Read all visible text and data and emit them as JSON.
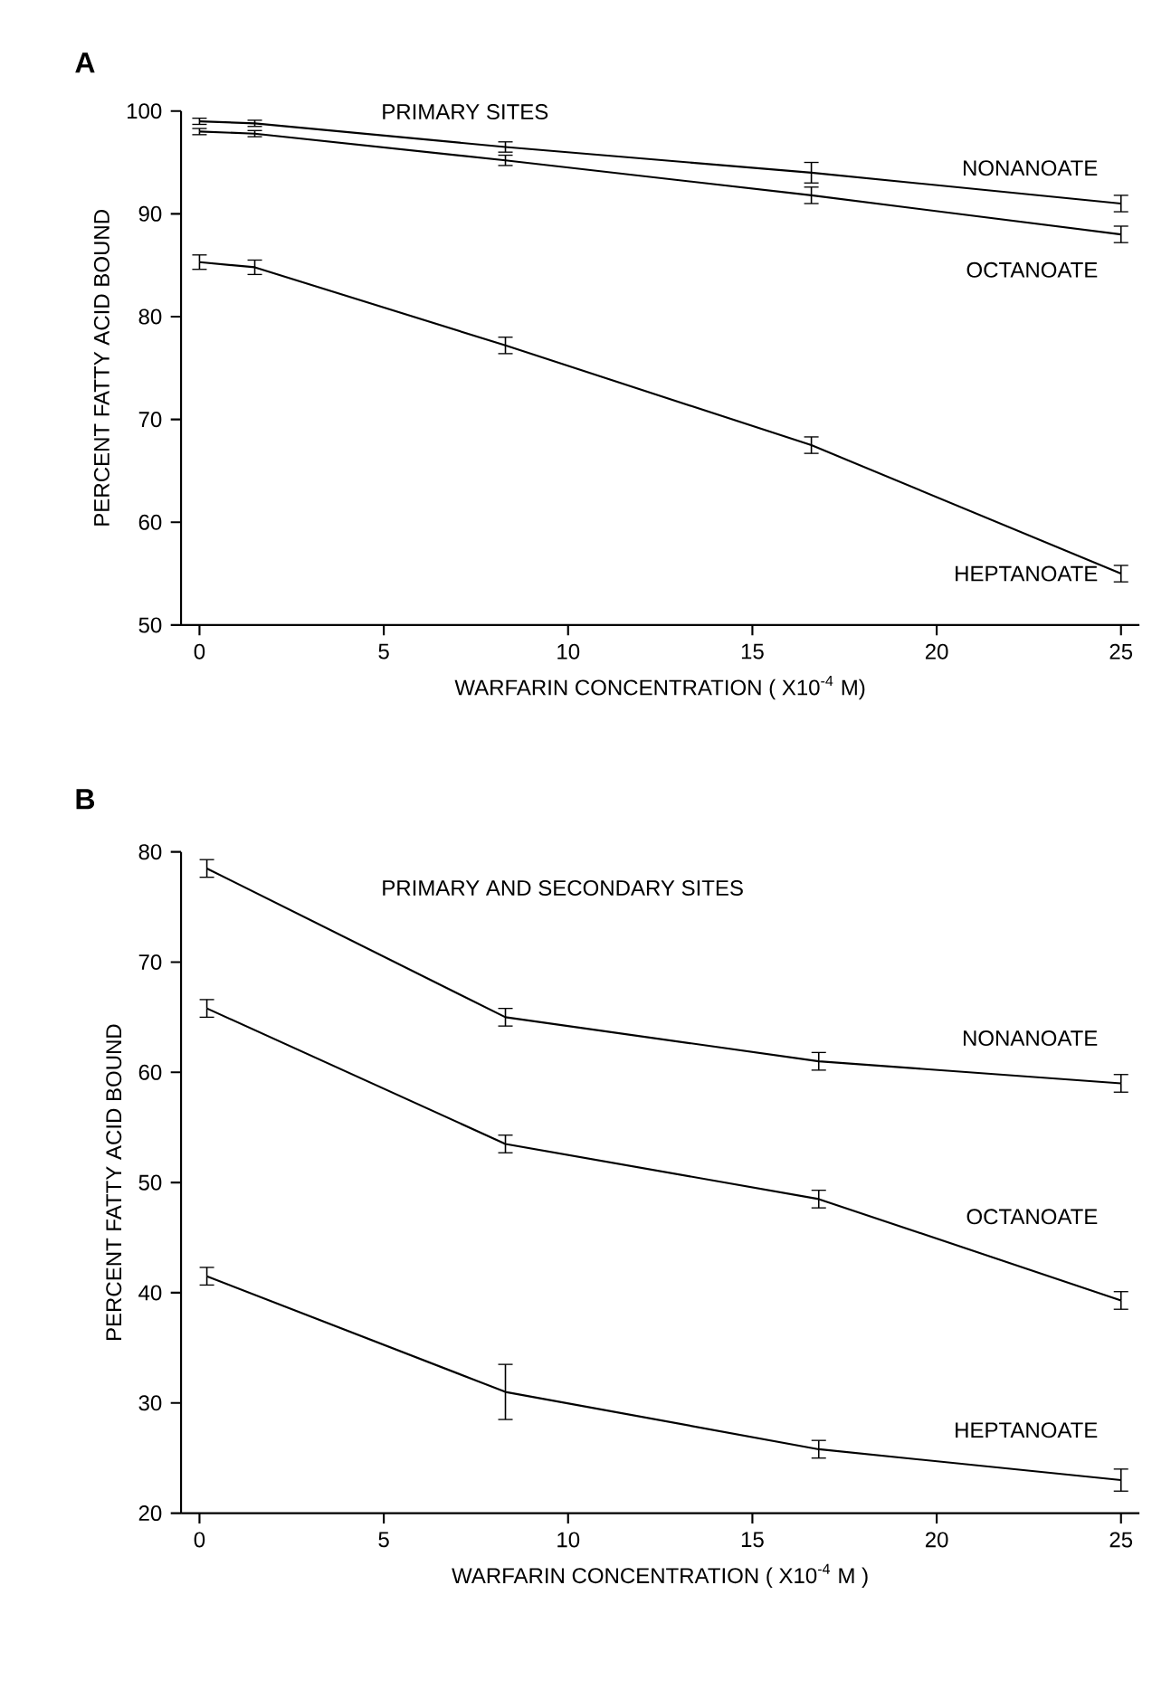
{
  "chart_data": [
    {
      "type": "line",
      "title": "A",
      "subtitle": "PRIMARY SITES",
      "xlabel": "WARFARIN CONCENTRATION ( X10$^{-4}$ M)",
      "ylabel": "PERCENT FATTY ACID BOUND",
      "x": [
        0,
        1.5,
        8.3,
        16.6,
        25
      ],
      "xlim": [
        -0.5,
        25.5
      ],
      "xticks": [
        0,
        5,
        10,
        15,
        20,
        25
      ],
      "ylim": [
        50,
        100
      ],
      "yticks": [
        50,
        60,
        70,
        80,
        90,
        100
      ],
      "series": [
        {
          "name": "NONANOATE",
          "color": "#000000",
          "values": [
            99,
            98.8,
            96.5,
            94,
            91
          ],
          "errors": [
            0.3,
            0.3,
            0.5,
            1,
            0.8
          ]
        },
        {
          "name": "OCTANOATE",
          "color": "#000000",
          "values": [
            98,
            97.8,
            95.2,
            91.8,
            88
          ],
          "errors": [
            0.3,
            0.3,
            0.5,
            0.8,
            0.8
          ]
        },
        {
          "name": "HEPTANOATE",
          "color": "#000000",
          "values": [
            85.3,
            84.8,
            77.2,
            67.5,
            55
          ],
          "errors": [
            0.7,
            0.7,
            0.8,
            0.8,
            0.8
          ]
        }
      ]
    },
    {
      "type": "line",
      "title": "B",
      "subtitle": "PRIMARY AND SECONDARY SITES",
      "xlabel": "WARFARIN CONCENTRATION ( X10$^{-4}$ M )",
      "ylabel": "PERCENT FATTY ACID BOUND",
      "x": [
        0.2,
        8.3,
        16.8,
        25
      ],
      "xlim": [
        -0.5,
        25.5
      ],
      "xticks": [
        0,
        5,
        10,
        15,
        20,
        25
      ],
      "ylim": [
        20,
        80
      ],
      "yticks": [
        20,
        30,
        40,
        50,
        60,
        70,
        80
      ],
      "series": [
        {
          "name": "NONANOATE",
          "color": "#000000",
          "values": [
            78.5,
            65,
            61,
            59
          ],
          "errors": [
            0.8,
            0.8,
            0.8,
            0.8
          ]
        },
        {
          "name": "OCTANOATE",
          "color": "#000000",
          "values": [
            65.8,
            53.5,
            48.5,
            39.3
          ],
          "errors": [
            0.8,
            0.8,
            0.8,
            0.8
          ]
        },
        {
          "name": "HEPTANOATE",
          "color": "#000000",
          "values": [
            41.5,
            31,
            25.8,
            23
          ],
          "errors": [
            0.8,
            2.5,
            0.8,
            1
          ]
        }
      ]
    }
  ]
}
